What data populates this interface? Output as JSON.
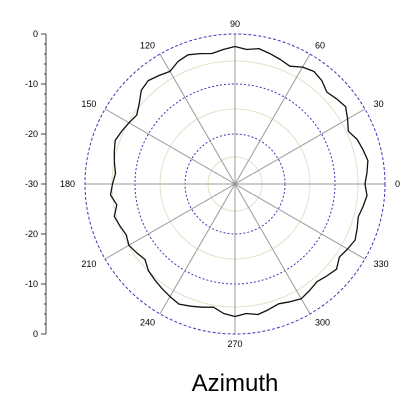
{
  "chart_data": {
    "type": "line",
    "subtype": "polar",
    "title": "Azimuth",
    "radial_axis": {
      "ticks": [
        "0",
        "-10",
        "-20",
        "-30",
        "-20",
        "-10",
        "0"
      ],
      "range": [
        -30,
        0
      ]
    },
    "angular_axis": {
      "unit": "degrees",
      "ticks": [
        "0",
        "30",
        "60",
        "90",
        "120",
        "150",
        "180",
        "210",
        "240",
        "270",
        "300",
        "330"
      ]
    },
    "grid": true,
    "colors": {
      "trace": "#111111",
      "outer_ring": "#3a3ab8",
      "dotted_rings": "#3a3ab8",
      "faint_rings": "#e6e0c8",
      "spokes": "#9a9a9a",
      "axis": "#444444"
    },
    "series": [
      {
        "angles": [
          0,
          5,
          10,
          15,
          20,
          25,
          30,
          35,
          40,
          45,
          50,
          55,
          60,
          65,
          70,
          75,
          80,
          85,
          90,
          95,
          100,
          105,
          110,
          115,
          120,
          125,
          130,
          135,
          140,
          145,
          150,
          155,
          160,
          165,
          170,
          175,
          180,
          185,
          190,
          195,
          200,
          205,
          210,
          215,
          220,
          225,
          230,
          235,
          240,
          245,
          250,
          255,
          260,
          265,
          270,
          275,
          280,
          285,
          290,
          295,
          300,
          305,
          310,
          315,
          320,
          325,
          330,
          335,
          340,
          345,
          350,
          355
        ],
        "values": [
          -4,
          -3.5,
          -3,
          -3.5,
          -4,
          -5,
          -4,
          -3,
          -3.5,
          -4,
          -3,
          -2.5,
          -3,
          -4,
          -3.5,
          -3,
          -2.5,
          -3,
          -2.5,
          -3,
          -3.5,
          -3,
          -2.5,
          -3,
          -4,
          -3.5,
          -3,
          -3.5,
          -5,
          -6,
          -5.5,
          -5,
          -4.5,
          -5,
          -5.5,
          -6,
          -5.5,
          -5,
          -6,
          -5,
          -5.5,
          -6,
          -5.5,
          -6,
          -6.5,
          -5.5,
          -5,
          -4.5,
          -4,
          -3.5,
          -4,
          -4.5,
          -5,
          -4,
          -3.5,
          -4,
          -3.5,
          -4,
          -4.5,
          -4,
          -3.5,
          -4,
          -4.5,
          -4,
          -3.5,
          -4.5,
          -4,
          -3.5,
          -4,
          -4.5,
          -4,
          -3.5
        ]
      }
    ]
  }
}
